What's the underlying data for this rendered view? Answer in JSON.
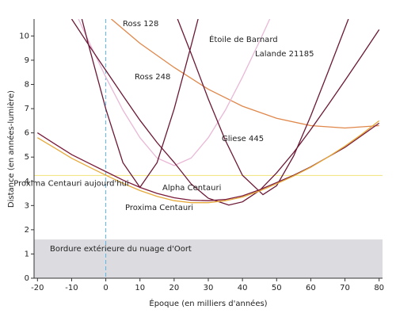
{
  "chart_data": {
    "type": "line",
    "xlabel": "Époque (en milliers d'années)",
    "ylabel": "Distance (en années-lumière)",
    "xlim": [
      -21,
      81
    ],
    "xticks": [
      -20,
      -10,
      0,
      10,
      20,
      30,
      40,
      50,
      60,
      70,
      80
    ],
    "ylim": [
      0,
      10.7
    ],
    "yticks": [
      0,
      1,
      2,
      3,
      4,
      5,
      6,
      7,
      8,
      9,
      10
    ],
    "grid": false,
    "series": [
      {
        "name": "Ross 128",
        "color": "#e0874a",
        "x": [
          1.6,
          10,
          20,
          30,
          40,
          50,
          60,
          70,
          80
        ],
        "values": [
          10.7,
          9.7,
          8.7,
          7.8,
          7.1,
          6.6,
          6.3,
          6.2,
          6.3
        ]
      },
      {
        "name": "Lalande 21185",
        "color": "#e9b8d6",
        "x": [
          -8,
          -5,
          0,
          5,
          10,
          15,
          20,
          25,
          30,
          35,
          40,
          45,
          48
        ],
        "values": [
          10.7,
          9.78,
          8.3,
          6.94,
          5.8,
          4.96,
          4.65,
          4.96,
          5.8,
          6.94,
          8.3,
          9.78,
          10.7
        ]
      },
      {
        "name": "Étoile de Barnard",
        "color": "#6b1836",
        "x": [
          -7,
          -5,
          0,
          5,
          10,
          15,
          20,
          25,
          27
        ],
        "values": [
          10.7,
          9.61,
          6.99,
          4.77,
          3.75,
          4.77,
          6.99,
          9.61,
          10.7
        ]
      },
      {
        "name": "Ross 248",
        "color": "#6b1836",
        "x": [
          -10,
          -5,
          0,
          5,
          10,
          15,
          20,
          25,
          30,
          36,
          40,
          45,
          50,
          55,
          60,
          65,
          70,
          75,
          80
        ],
        "values": [
          10.7,
          9.63,
          8.58,
          7.54,
          6.52,
          5.6,
          4.78,
          3.89,
          3.3,
          3.02,
          3.15,
          3.62,
          4.35,
          5.19,
          6.14,
          7.14,
          8.16,
          9.2,
          10.26
        ]
      },
      {
        "name": "Gliese 445",
        "color": "#6b1836",
        "x": [
          21,
          25,
          30,
          35,
          40,
          46,
          50,
          55,
          60,
          65,
          71
        ],
        "values": [
          10.7,
          9.27,
          7.4,
          5.69,
          4.25,
          3.45,
          3.82,
          5.05,
          6.7,
          8.5,
          10.7
        ]
      },
      {
        "name": "Alpha Centauri",
        "color": "#7a1a3a",
        "x": [
          -20,
          -15,
          -10,
          -5,
          0,
          5,
          10,
          15,
          20,
          25,
          30,
          35,
          40,
          45,
          50,
          55,
          60,
          65,
          70,
          75,
          80
        ],
        "values": [
          6.0,
          5.55,
          5.1,
          4.75,
          4.4,
          4.05,
          3.75,
          3.5,
          3.32,
          3.22,
          3.2,
          3.25,
          3.4,
          3.65,
          3.95,
          4.25,
          4.6,
          5.0,
          5.4,
          5.9,
          6.4
        ]
      },
      {
        "name": "Proxima Centauri",
        "color": "#e6a93a",
        "x": [
          -20,
          -15,
          -10,
          -5,
          0,
          5,
          10,
          15,
          20,
          25,
          30,
          35,
          40,
          45,
          50,
          55,
          60,
          65,
          70,
          75,
          80
        ],
        "values": [
          5.8,
          5.38,
          4.95,
          4.6,
          4.25,
          3.92,
          3.62,
          3.38,
          3.2,
          3.12,
          3.12,
          3.2,
          3.35,
          3.6,
          3.9,
          4.22,
          4.58,
          5.0,
          5.45,
          5.95,
          6.5
        ]
      }
    ],
    "reference_lines": [
      {
        "label": "Proxima Centauri aujourd'hui",
        "y": 4.24,
        "color": "#f0e27a"
      },
      {
        "x": 0,
        "color": "#5ab4e6"
      }
    ],
    "band": {
      "label": "Bordure extérieure du nuage d'Oort",
      "y": [
        0,
        1.6
      ],
      "color": "#dcdce0"
    }
  }
}
